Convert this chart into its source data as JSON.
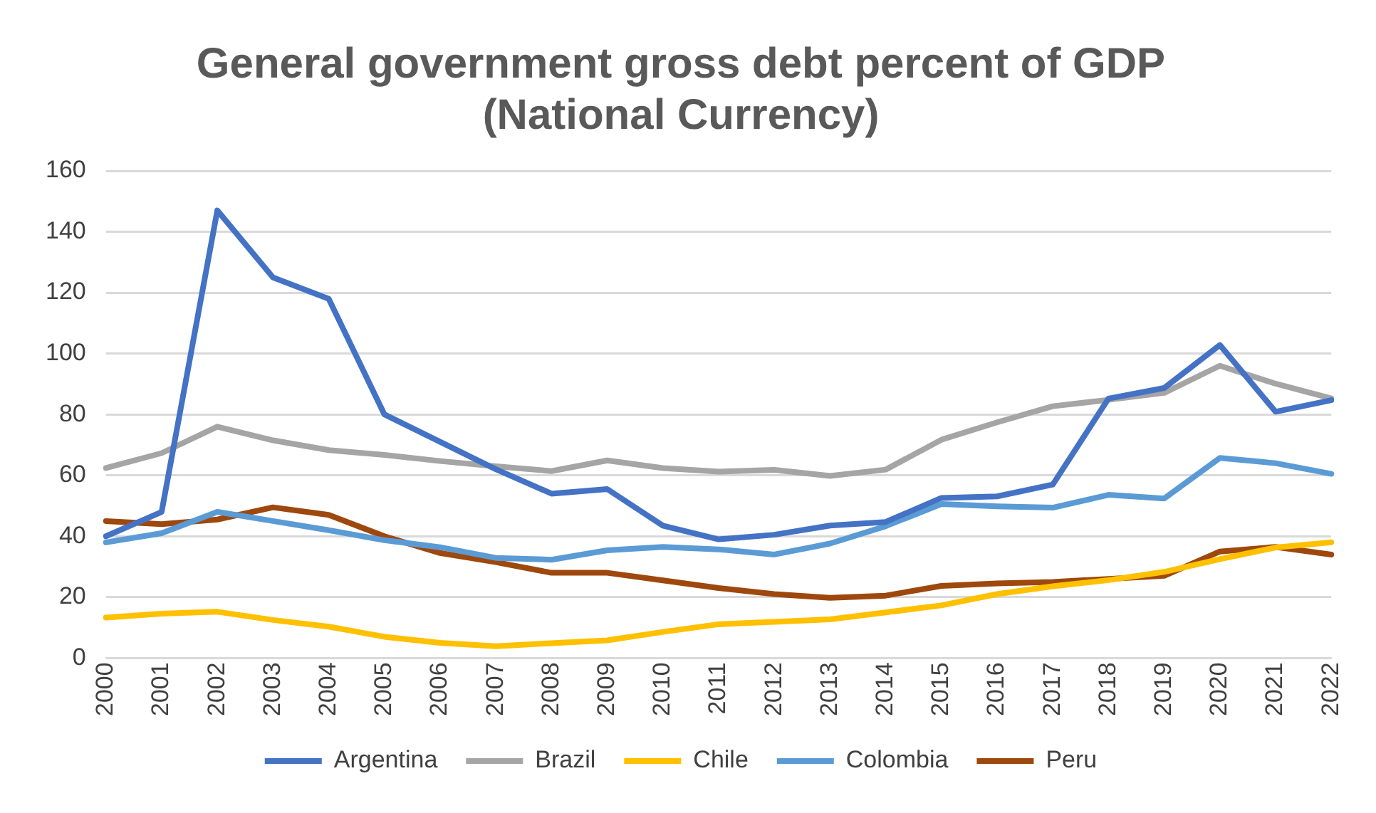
{
  "chart_data": {
    "type": "line",
    "title": "General government gross debt percent of GDP (National Currency)",
    "categories": [
      "2000",
      "2001",
      "2002",
      "2003",
      "2004",
      "2005",
      "2006",
      "2007",
      "2008",
      "2009",
      "2010",
      "2011",
      "2012",
      "2013",
      "2014",
      "2015",
      "2016",
      "2017",
      "2018",
      "2019",
      "2020",
      "2021",
      "2022"
    ],
    "series": [
      {
        "name": "Argentina",
        "color": "#4472c4",
        "values": [
          40,
          48,
          147,
          125,
          118,
          80,
          71,
          62,
          54,
          55.5,
          43.5,
          39,
          40.5,
          43.5,
          44.7,
          52.6,
          53.1,
          57,
          85.2,
          88.7,
          102.8,
          80.9,
          84.7
        ]
      },
      {
        "name": "Brazil",
        "color": "#a5a5a5",
        "values": [
          62.4,
          67.3,
          76,
          71.5,
          68.3,
          66.7,
          64.7,
          63,
          61.4,
          64.9,
          62.4,
          61.2,
          61.8,
          59.8,
          61.9,
          71.7,
          77.4,
          82.7,
          84.8,
          87.1,
          96,
          90.1,
          85.3
        ]
      },
      {
        "name": "Chile",
        "color": "#ffc000",
        "values": [
          13.3,
          14.6,
          15.2,
          12.5,
          10.3,
          7,
          5,
          3.9,
          4.9,
          5.8,
          8.6,
          11.1,
          11.9,
          12.7,
          15,
          17.3,
          21,
          23.6,
          25.6,
          28.3,
          32.5,
          36.3,
          38
        ]
      },
      {
        "name": "Colombia",
        "color": "#5b9bd5",
        "values": [
          38,
          41,
          48,
          45,
          42,
          38.7,
          36.4,
          32.9,
          32.3,
          35.4,
          36.5,
          35.7,
          34,
          37.6,
          43.3,
          50.6,
          49.8,
          49.4,
          53.6,
          52.4,
          65.7,
          64,
          60.5
        ]
      },
      {
        "name": "Peru",
        "color": "#9e480e",
        "values": [
          45,
          44,
          45.5,
          49.5,
          47,
          40,
          34.5,
          31.5,
          28,
          28,
          25.5,
          23,
          21,
          19.8,
          20.5,
          23.7,
          24.5,
          25,
          26,
          27,
          35,
          36.5,
          34
        ]
      }
    ],
    "ylim": [
      0,
      160
    ],
    "yticks": [
      0,
      20,
      40,
      60,
      80,
      100,
      120,
      140,
      160
    ],
    "grid": "y",
    "legend": "bottom",
    "marker": "none",
    "line_style": "solid"
  }
}
